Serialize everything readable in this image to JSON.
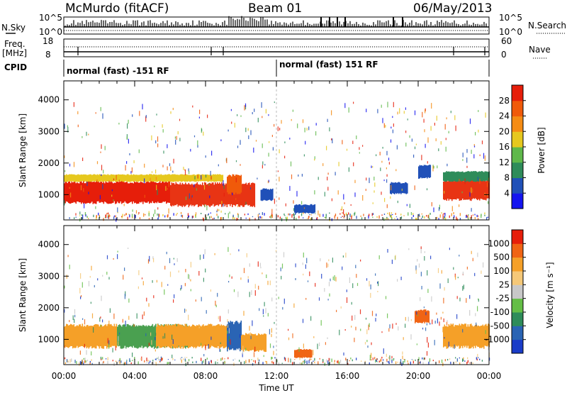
{
  "header": {
    "station": "McMurdo (fitACF)",
    "beam": "Beam 01",
    "date": "06/May/2013"
  },
  "summary_panels": {
    "nsky_label": "N.Sky",
    "nsky_ticks": [
      "10^5",
      "10^0"
    ],
    "nsearch_label": "N.Search",
    "nsearch_ticks": [
      "10^5",
      "10^0"
    ],
    "freq_label": "Freq.",
    "freq_unit": "[MHz]",
    "freq_ticks": [
      "18",
      "8"
    ],
    "nave_label": "Nave",
    "nave_ticks": [
      "60",
      "0"
    ],
    "cpid_label": "CPID",
    "cpid_segments": [
      {
        "label": "normal (fast) -151 RF",
        "start_hour": 0
      },
      {
        "label": "normal (fast) 151 RF",
        "start_hour": 12
      }
    ]
  },
  "chart_data": [
    {
      "type": "heatmap",
      "name": "power-panel",
      "ylabel": "Slant Range [km]",
      "ylim": [
        200,
        4600
      ],
      "yticks": [
        "1000",
        "2000",
        "3000",
        "4000"
      ],
      "ytick_values": [
        1000,
        2000,
        3000,
        4000
      ],
      "colorbar_label": "Power [dB]",
      "colorbar_ticks": [
        "4",
        "8",
        "12",
        "16",
        "20",
        "24",
        "28"
      ],
      "colorbar_colors": [
        "#1414f0",
        "#2050b8",
        "#2e8c5a",
        "#5fb84a",
        "#e6c81e",
        "#f58c14",
        "#f05a0a",
        "#e61e0a"
      ],
      "regions": [
        {
          "x_start": 0.0,
          "x_end": 6.0,
          "y_lo": 700,
          "y_hi": 1450,
          "color": "#e61e0a"
        },
        {
          "x_start": 6.0,
          "x_end": 10.8,
          "y_lo": 600,
          "y_hi": 1400,
          "color": "#e83414"
        },
        {
          "x_start": 9.2,
          "x_end": 10.0,
          "y_lo": 1000,
          "y_hi": 1650,
          "color": "#f05a0a"
        },
        {
          "x_start": 0.0,
          "x_end": 9.0,
          "y_lo": 1400,
          "y_hi": 1650,
          "color": "#e6c81e"
        },
        {
          "x_start": 11.1,
          "x_end": 11.8,
          "y_lo": 800,
          "y_hi": 1200,
          "color": "#2050b8"
        },
        {
          "x_start": 13.0,
          "x_end": 14.2,
          "y_lo": 400,
          "y_hi": 700,
          "color": "#2050b8"
        },
        {
          "x_start": 18.4,
          "x_end": 19.4,
          "y_lo": 1000,
          "y_hi": 1400,
          "color": "#2050b8"
        },
        {
          "x_start": 20.0,
          "x_end": 20.7,
          "y_lo": 1500,
          "y_hi": 1950,
          "color": "#2050b8"
        },
        {
          "x_start": 21.4,
          "x_end": 24.0,
          "y_lo": 800,
          "y_hi": 1500,
          "color": "#e83414"
        },
        {
          "x_start": 21.4,
          "x_end": 24.0,
          "y_lo": 1400,
          "y_hi": 1750,
          "color": "#2e8c5a"
        }
      ]
    },
    {
      "type": "heatmap",
      "name": "velocity-panel",
      "ylabel": "Slant Range [km]",
      "ylim": [
        200,
        4600
      ],
      "yticks": [
        "1000",
        "2000",
        "3000",
        "4000"
      ],
      "ytick_values": [
        1000,
        2000,
        3000,
        4000
      ],
      "xlabel": "Time UT",
      "xticks": [
        "00:00",
        "04:00",
        "08:00",
        "12:00",
        "16:00",
        "20:00",
        "00:00"
      ],
      "xtick_hours": [
        0,
        4,
        8,
        12,
        16,
        20,
        24
      ],
      "colorbar_label": "Velocity [m s⁻¹]",
      "colorbar_ticks": [
        "1000",
        "500",
        "100",
        "25",
        "-25",
        "-100",
        "-500",
        "-1000"
      ],
      "colorbar_colors": [
        "#1a3cc8",
        "#2a64b4",
        "#2e8c5a",
        "#64be46",
        "#c8c8c8",
        "#f5c878",
        "#f5a028",
        "#f06414",
        "#e61e0a"
      ],
      "regions": [
        {
          "x_start": 0.0,
          "x_end": 3.0,
          "y_lo": 700,
          "y_hi": 1500,
          "color": "#f5a028"
        },
        {
          "x_start": 3.0,
          "x_end": 7.0,
          "y_lo": 700,
          "y_hi": 1500,
          "color": "#4aa050"
        },
        {
          "x_start": 5.2,
          "x_end": 9.2,
          "y_lo": 700,
          "y_hi": 1500,
          "color": "#f5a028"
        },
        {
          "x_start": 9.2,
          "x_end": 10.0,
          "y_lo": 600,
          "y_hi": 1600,
          "color": "#2a64b4"
        },
        {
          "x_start": 10.0,
          "x_end": 11.4,
          "y_lo": 600,
          "y_hi": 1200,
          "color": "#f5a028"
        },
        {
          "x_start": 13.0,
          "x_end": 14.0,
          "y_lo": 400,
          "y_hi": 700,
          "color": "#f06414"
        },
        {
          "x_start": 19.8,
          "x_end": 20.6,
          "y_lo": 1500,
          "y_hi": 1950,
          "color": "#f06414"
        },
        {
          "x_start": 21.4,
          "x_end": 24.0,
          "y_lo": 700,
          "y_hi": 1500,
          "color": "#f5a028"
        }
      ]
    }
  ]
}
